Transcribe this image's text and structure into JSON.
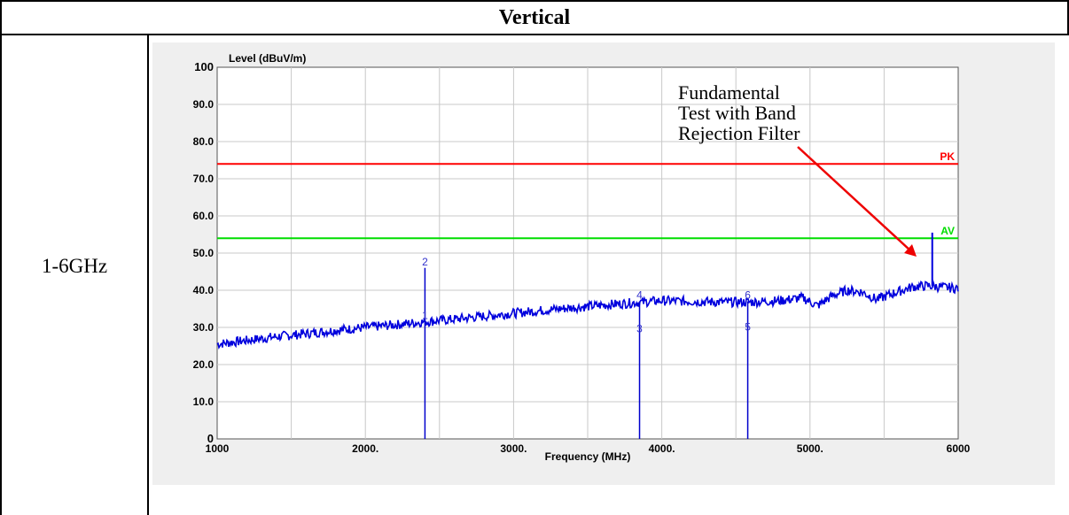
{
  "table": {
    "header": "Vertical",
    "row_label": "1-6GHz"
  },
  "chart_data": {
    "type": "line",
    "title": "",
    "xlabel": "Frequency (MHz)",
    "ylabel": "Level (dBuV/m)",
    "xlim": [
      1000,
      6000
    ],
    "ylim": [
      0,
      100
    ],
    "x_ticks": [
      {
        "value": 1000,
        "label": "1000"
      },
      {
        "value": 2000,
        "label": "2000."
      },
      {
        "value": 3000,
        "label": "3000."
      },
      {
        "value": 4000,
        "label": "4000."
      },
      {
        "value": 5000,
        "label": "5000."
      },
      {
        "value": 6000,
        "label": "6000"
      }
    ],
    "y_ticks": [
      {
        "value": 0,
        "label": "0"
      },
      {
        "value": 10,
        "label": "10.0"
      },
      {
        "value": 20,
        "label": "20.0"
      },
      {
        "value": 30,
        "label": "30.0"
      },
      {
        "value": 40,
        "label": "40.0"
      },
      {
        "value": 50,
        "label": "50.0"
      },
      {
        "value": 60,
        "label": "60.0"
      },
      {
        "value": 70,
        "label": "70.0"
      },
      {
        "value": 80,
        "label": "80.0"
      },
      {
        "value": 90,
        "label": "90.0"
      },
      {
        "value": 100,
        "label": "100"
      }
    ],
    "grid": true,
    "limit_lines": [
      {
        "label": "PK",
        "value": 74,
        "color": "#ff0000"
      },
      {
        "label": "AV",
        "value": 54,
        "color": "#00dd00"
      }
    ],
    "trace": {
      "color": "#0000dd",
      "x": [
        1000,
        1200,
        1400,
        1600,
        1800,
        2000,
        2200,
        2400,
        2600,
        2800,
        3000,
        3200,
        3400,
        3600,
        3800,
        4000,
        4200,
        4400,
        4600,
        4800,
        4950,
        5050,
        5150,
        5250,
        5350,
        5450,
        5550,
        5700,
        5800,
        5900,
        6000
      ],
      "y": [
        25.5,
        26.5,
        27.5,
        28.3,
        29.2,
        30.0,
        30.7,
        31.5,
        32.2,
        33.0,
        33.8,
        34.6,
        35.3,
        36.0,
        36.6,
        37.2,
        37.0,
        36.8,
        36.8,
        37.2,
        38.0,
        35.8,
        38.5,
        40.0,
        39.5,
        37.5,
        39.0,
        41.0,
        41.2,
        40.8,
        40.5
      ]
    },
    "markers": [
      {
        "label": "1",
        "x": 2402,
        "y": 31.5
      },
      {
        "label": "2",
        "x": 2402,
        "y": 46
      },
      {
        "label": "3",
        "x": 3850,
        "y": 28
      },
      {
        "label": "4",
        "x": 3850,
        "y": 37
      },
      {
        "label": "5",
        "x": 4580,
        "y": 28.5
      },
      {
        "label": "6",
        "x": 4580,
        "y": 37
      }
    ],
    "fundamental_spike": {
      "x": 5825,
      "y": 55.5
    },
    "annotation": {
      "lines": [
        "Fundamental",
        "Test with Band",
        "Rejection Filter"
      ],
      "arrow_color": "#ee0000"
    }
  }
}
